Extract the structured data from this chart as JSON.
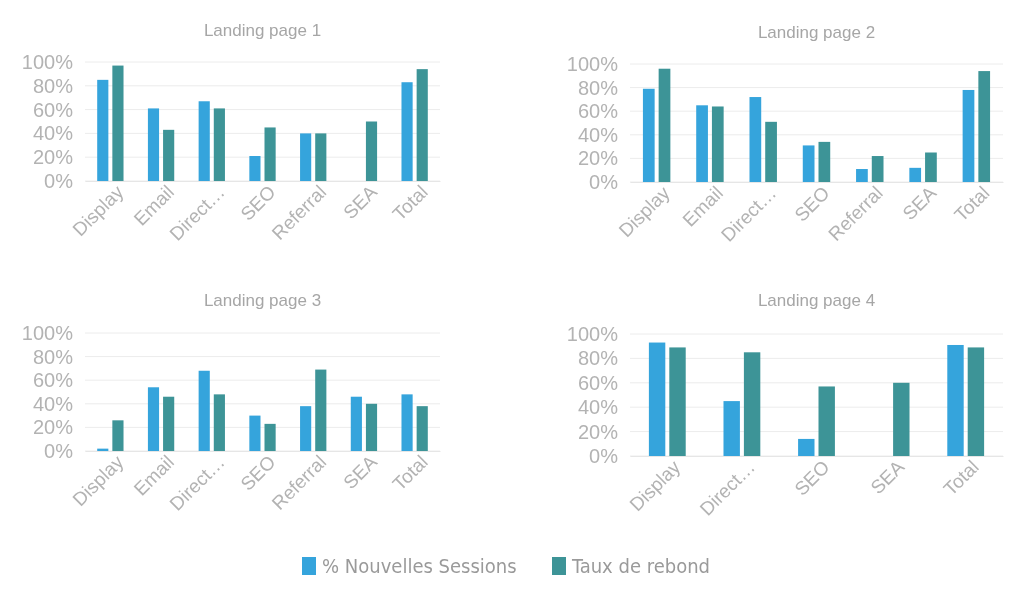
{
  "chart_data": [
    {
      "type": "bar",
      "title": "Landing page 1",
      "categories": [
        "Display",
        "Email",
        "Direct…",
        "SEO",
        "Referral",
        "SEA",
        "Total"
      ],
      "ylim": [
        0,
        100
      ],
      "yticks": [
        {
          "value": 0,
          "label": "0%"
        },
        {
          "value": 20,
          "label": "20%"
        },
        {
          "value": 40,
          "label": "40%"
        },
        {
          "value": 60,
          "label": "60%"
        },
        {
          "value": 80,
          "label": "80%"
        },
        {
          "value": 100,
          "label": "100%"
        }
      ],
      "grid": "y",
      "legend": "bottom",
      "series": [
        {
          "name": "% Nouvelles Sessions",
          "color": "#35a4dc",
          "values": [
            85,
            61,
            67,
            21,
            40,
            null,
            83
          ]
        },
        {
          "name": "Taux de rebond",
          "color": "#3d9497",
          "values": [
            97,
            43,
            61,
            45,
            40,
            50,
            94
          ]
        }
      ]
    },
    {
      "type": "bar",
      "title": "Landing page 2",
      "categories": [
        "Display",
        "Email",
        "Direct…",
        "SEO",
        "Referral",
        "SEA",
        "Total"
      ],
      "ylim": [
        0,
        100
      ],
      "yticks": [
        {
          "value": 0,
          "label": "0%"
        },
        {
          "value": 20,
          "label": "20%"
        },
        {
          "value": 40,
          "label": "40%"
        },
        {
          "value": 60,
          "label": "60%"
        },
        {
          "value": 80,
          "label": "80%"
        },
        {
          "value": 100,
          "label": "100%"
        }
      ],
      "grid": "y",
      "series": [
        {
          "color": "#35a4dc",
          "values": [
            79,
            65,
            72,
            31,
            11,
            12,
            78
          ]
        },
        {
          "color": "#3d9497",
          "values": [
            96,
            64,
            51,
            34,
            22,
            25,
            94
          ]
        }
      ]
    },
    {
      "type": "bar",
      "title": "Landing page 3",
      "categories": [
        "Display",
        "Email",
        "Direct…",
        "SEO",
        "Referral",
        "SEA",
        "Total"
      ],
      "ylim": [
        0,
        100
      ],
      "yticks": [
        {
          "value": 0,
          "label": "0%"
        },
        {
          "value": 20,
          "label": "20%"
        },
        {
          "value": 40,
          "label": "40%"
        },
        {
          "value": 60,
          "label": "60%"
        },
        {
          "value": 80,
          "label": "80%"
        },
        {
          "value": 100,
          "label": "100%"
        }
      ],
      "grid": "y",
      "series": [
        {
          "color": "#35a4dc",
          "values": [
            2,
            54,
            68,
            30,
            38,
            46,
            48
          ]
        },
        {
          "color": "#3d9497",
          "values": [
            26,
            46,
            48,
            23,
            69,
            40,
            38
          ]
        }
      ]
    },
    {
      "type": "bar",
      "title": "Landing page 4",
      "categories": [
        "Display",
        "Direct…",
        "SEO",
        "SEA",
        "Total"
      ],
      "ylim": [
        0,
        100
      ],
      "yticks": [
        {
          "value": 0,
          "label": "0%"
        },
        {
          "value": 20,
          "label": "20%"
        },
        {
          "value": 40,
          "label": "40%"
        },
        {
          "value": 60,
          "label": "60%"
        },
        {
          "value": 80,
          "label": "80%"
        },
        {
          "value": 100,
          "label": "100%"
        }
      ],
      "grid": "y",
      "series": [
        {
          "color": "#35a4dc",
          "values": [
            93,
            45,
            14,
            null,
            91
          ]
        },
        {
          "color": "#3d9497",
          "values": [
            89,
            85,
            57,
            60,
            89
          ]
        }
      ]
    }
  ]
}
